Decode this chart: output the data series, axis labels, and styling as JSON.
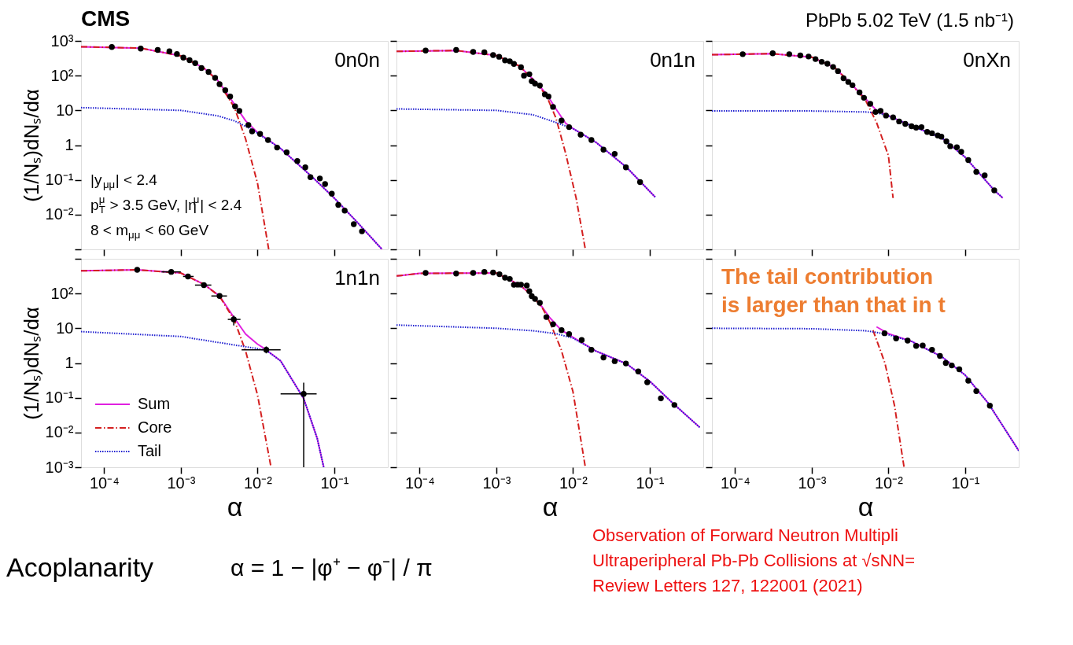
{
  "chart_data": [
    {
      "type": "other",
      "annotations": [
        "CMS",
        "PbPb 5.02 TeV (1.5 nb⁻¹)"
      ]
    },
    {
      "type": "line",
      "title": "0n0n",
      "ylabel": "(1/Nₛ)dNₛ/dα",
      "log": "xy",
      "grid": false,
      "tick_labels": "y",
      "xlim": [
        5e-05,
        0.5
      ],
      "ylim": [
        0.001,
        1000
      ],
      "xticks": [
        {
          "value": 0.0001,
          "label": null
        },
        {
          "value": 0.001,
          "label": null
        },
        {
          "value": 0.01,
          "label": null
        },
        {
          "value": 0.1,
          "label": null
        }
      ],
      "yticks": [
        {
          "value": 0.001,
          "label": null
        },
        {
          "value": 0.01,
          "label": "10⁻²"
        },
        {
          "value": 0.1,
          "label": "10⁻¹"
        },
        1,
        10,
        {
          "value": 100,
          "label": "10²"
        },
        {
          "value": 1000,
          "label": "10³"
        }
      ],
      "annotations": [
        "|y$_{μμ}$| < 2.4",
        "p$^{μ}$$_{T}$ > 3.5 GeV, |η$^{μ}$| < 2.4",
        "8 < m$_{μμ}$ < 60 GeV"
      ],
      "series": [
        {
          "type": "line",
          "color": "#e020e0",
          "line_style": "solid",
          "x": [
            5e-05,
            0.0003,
            0.001,
            0.002,
            0.003,
            0.005,
            0.007,
            0.01,
            0.02,
            0.05,
            0.1,
            0.2,
            0.42
          ],
          "values": [
            680,
            620,
            370,
            165,
            75,
            15,
            5,
            2.3,
            0.8,
            0.13,
            0.03,
            0.006,
            0.001
          ]
        },
        {
          "type": "line",
          "color": "#d42020",
          "line_style": "dashed",
          "x": [
            5e-05,
            0.0003,
            0.001,
            0.002,
            0.003,
            0.005,
            0.007,
            0.01,
            0.014
          ],
          "values": [
            680,
            620,
            370,
            165,
            73,
            12,
            1.5,
            0.08,
            0.001
          ]
        },
        {
          "type": "line",
          "color": "#2020d0",
          "line_style": "dotted",
          "x": [
            5e-05,
            0.001,
            0.003,
            0.005,
            0.008,
            0.01,
            0.02,
            0.05,
            0.1,
            0.2,
            0.42
          ],
          "values": [
            12,
            10,
            7,
            5,
            3,
            2.2,
            0.8,
            0.13,
            0.03,
            0.006,
            0.001
          ]
        },
        {
          "type": "scatter",
          "color": "#000000",
          "marker": "circle",
          "x": [
            0.000126,
            0.0003,
            0.0005,
            0.00071,
            0.00089,
            0.00108,
            0.0013,
            0.00154,
            0.00186,
            0.0023,
            0.0028,
            0.0032,
            0.0038,
            0.0044,
            0.0051,
            0.0058,
            0.0076,
            0.0085,
            0.0108,
            0.0137,
            0.018,
            0.024,
            0.033,
            0.042,
            0.049,
            0.065,
            0.076,
            0.093,
            0.113,
            0.137,
            0.18,
            0.23
          ],
          "values": [
            670,
            600,
            550,
            500,
            420,
            330,
            280,
            230,
            165,
            128,
            86,
            57,
            38,
            25,
            13,
            9.7,
            3.8,
            2.5,
            2.1,
            1.4,
            0.85,
            0.62,
            0.35,
            0.23,
            0.12,
            0.11,
            0.076,
            0.04,
            0.019,
            0.013,
            0.0053,
            0.0033
          ]
        }
      ]
    },
    {
      "type": "line",
      "title": "0n1n",
      "log": "xy",
      "grid": false,
      "tick_labels": false,
      "xlim": [
        5e-05,
        0.5
      ],
      "ylim": [
        0.001,
        1000
      ],
      "xticks": [
        {
          "value": 0.0001,
          "label": null
        },
        {
          "value": 0.001,
          "label": null
        },
        {
          "value": 0.01,
          "label": null
        },
        {
          "value": 0.1,
          "label": null
        }
      ],
      "yticks": [
        {
          "value": 0.001,
          "label": null
        },
        {
          "value": 0.01,
          "label": null
        },
        {
          "value": 0.1,
          "label": null
        },
        {
          "value": 1,
          "label": null
        },
        {
          "value": 10,
          "label": null
        },
        {
          "value": 100,
          "label": null
        },
        {
          "value": 1000,
          "label": null
        }
      ],
      "series": [
        {
          "type": "line",
          "color": "#e020e0",
          "line_style": "solid",
          "x": [
            5e-05,
            0.0003,
            0.001,
            0.002,
            0.003,
            0.0045,
            0.006,
            0.008,
            0.01,
            0.02,
            0.05,
            0.118
          ],
          "values": [
            500,
            530,
            380,
            190,
            80,
            30,
            11,
            4.3,
            3.0,
            1.2,
            0.23,
            0.032
          ]
        },
        {
          "type": "line",
          "color": "#d42020",
          "line_style": "dashed",
          "x": [
            5e-05,
            0.0003,
            0.001,
            0.002,
            0.003,
            0.0045,
            0.006,
            0.008,
            0.011,
            0.0145
          ],
          "values": [
            500,
            530,
            380,
            190,
            78,
            27,
            6,
            0.6,
            0.03,
            0.001
          ]
        },
        {
          "type": "line",
          "color": "#2020d0",
          "line_style": "dotted",
          "x": [
            5e-05,
            0.001,
            0.003,
            0.006,
            0.01,
            0.02,
            0.05,
            0.118
          ],
          "values": [
            11,
            10,
            7.5,
            4.5,
            3.0,
            1.2,
            0.23,
            0.032
          ]
        },
        {
          "type": "scatter",
          "color": "#000000",
          "marker": "circle",
          "x": [
            0.00012,
            0.0003,
            0.0005,
            0.0007,
            0.00091,
            0.00109,
            0.0013,
            0.0015,
            0.0017,
            0.0021,
            0.0023,
            0.0027,
            0.0029,
            0.0032,
            0.0037,
            0.0043,
            0.0048,
            0.0055,
            0.0071,
            0.0089,
            0.0126,
            0.0174,
            0.025,
            0.035,
            0.049,
            0.075
          ],
          "values": [
            530,
            550,
            480,
            470,
            390,
            350,
            275,
            260,
            217,
            174,
            100,
            110,
            69,
            59,
            52,
            29,
            25,
            12.6,
            5.1,
            3.3,
            2.0,
            1.4,
            0.74,
            0.56,
            0.23,
            0.086
          ]
        }
      ]
    },
    {
      "type": "line",
      "title": "0nXn",
      "log": "xy",
      "grid": false,
      "tick_labels": false,
      "xlim": [
        5e-05,
        0.5
      ],
      "ylim": [
        0.001,
        1000
      ],
      "xticks": [
        {
          "value": 0.0001,
          "label": null
        },
        {
          "value": 0.001,
          "label": null
        },
        {
          "value": 0.01,
          "label": null
        },
        {
          "value": 0.1,
          "label": null
        }
      ],
      "yticks": [
        {
          "value": 0.001,
          "label": null
        },
        {
          "value": 0.01,
          "label": null
        },
        {
          "value": 0.1,
          "label": null
        },
        {
          "value": 1,
          "label": null
        },
        {
          "value": 10,
          "label": null
        },
        {
          "value": 100,
          "label": null
        },
        {
          "value": 1000,
          "label": null
        }
      ],
      "series": [
        {
          "type": "line",
          "color": "#e020e0",
          "line_style": "solid",
          "x": [
            5e-05,
            0.0003,
            0.001,
            0.002,
            0.003,
            0.005,
            0.007,
            0.01,
            0.02,
            0.05,
            0.1,
            0.24,
            0.31
          ],
          "values": [
            400,
            430,
            340,
            170,
            70,
            22,
            10,
            7,
            3.6,
            1.6,
            0.45,
            0.05,
            0.03
          ]
        },
        {
          "type": "line",
          "color": "#d42020",
          "line_style": "dashed",
          "x": [
            5e-05,
            0.0003,
            0.001,
            0.002,
            0.003,
            0.005,
            0.007,
            0.01,
            0.0115
          ],
          "values": [
            400,
            430,
            340,
            170,
            70,
            20,
            4.5,
            0.5,
            0.03
          ]
        },
        {
          "type": "line",
          "color": "#2020d0",
          "line_style": "dotted",
          "x": [
            5e-05,
            0.001,
            0.005,
            0.007,
            0.01,
            0.02,
            0.05,
            0.1,
            0.24,
            0.31
          ],
          "values": [
            9.7,
            9.6,
            9.0,
            8.5,
            7,
            3.6,
            1.6,
            0.45,
            0.05,
            0.03
          ]
        },
        {
          "type": "scatter",
          "color": "#000000",
          "marker": "circle",
          "x": [
            0.000126,
            0.00031,
            0.00051,
            0.00071,
            0.00091,
            0.00112,
            0.00135,
            0.0016,
            0.0019,
            0.0022,
            0.0026,
            0.003,
            0.0034,
            0.0042,
            0.0048,
            0.0058,
            0.0068,
            0.0079,
            0.0093,
            0.0115,
            0.0138,
            0.0166,
            0.02,
            0.023,
            0.027,
            0.032,
            0.037,
            0.044,
            0.049,
            0.057,
            0.064,
            0.078,
            0.089,
            0.11,
            0.14,
            0.18,
            0.24
          ],
          "values": [
            415,
            440,
            415,
            380,
            355,
            300,
            250,
            220,
            178,
            135,
            84,
            66,
            53,
            33,
            23,
            15.4,
            9.0,
            9.7,
            7.1,
            6.3,
            4.8,
            4.1,
            3.5,
            3.2,
            3.3,
            2.4,
            2.2,
            1.9,
            1.75,
            1.28,
            0.93,
            0.87,
            0.64,
            0.37,
            0.17,
            0.135,
            0.05
          ]
        }
      ]
    },
    {
      "type": "line",
      "title": "1n1n",
      "xlabel": "α",
      "ylabel": "(1/Nₛ)dNₛ/dα",
      "log": "xy",
      "grid": false,
      "legend": "bottom left",
      "xlim": [
        5e-05,
        0.5
      ],
      "ylim": [
        0.001,
        1000
      ],
      "xticks": [
        {
          "value": 0.0001,
          "label": "10⁻⁴"
        },
        {
          "value": 0.001,
          "label": "10⁻³"
        },
        {
          "value": 0.01,
          "label": "10⁻²"
        },
        {
          "value": 0.1,
          "label": "10⁻¹"
        }
      ],
      "yticks": [
        {
          "value": 0.001,
          "label": "10⁻³"
        },
        {
          "value": 0.01,
          "label": "10⁻²"
        },
        {
          "value": 0.1,
          "label": "10⁻¹"
        },
        1,
        10,
        {
          "value": 100,
          "label": "10²"
        },
        {
          "value": 1000,
          "label": null
        }
      ],
      "series": [
        {
          "type": "line",
          "name": "Sum",
          "color": "#e020e0",
          "line_style": "solid",
          "x": [
            5e-05,
            0.00027,
            0.001,
            0.002,
            0.0032,
            0.005,
            0.007,
            0.01,
            0.013,
            0.02,
            0.04,
            0.06,
            0.073
          ],
          "values": [
            450,
            480,
            390,
            185,
            85,
            19.5,
            6.8,
            3.5,
            2.4,
            1.15,
            0.095,
            0.0068,
            0.001
          ]
        },
        {
          "type": "line",
          "name": "Core",
          "color": "#d42020",
          "line_style": "dashed",
          "x": [
            5e-05,
            0.00027,
            0.001,
            0.002,
            0.0032,
            0.005,
            0.007,
            0.01,
            0.015
          ],
          "values": [
            450,
            480,
            390,
            185,
            83,
            17,
            2.2,
            0.12,
            0.001
          ]
        },
        {
          "type": "line",
          "name": "Tail",
          "color": "#2020d0",
          "line_style": "dotted",
          "x": [
            5e-05,
            0.001,
            0.005,
            0.01,
            0.013,
            0.02,
            0.04,
            0.06,
            0.073
          ],
          "values": [
            8,
            5.8,
            3.3,
            2.6,
            2.3,
            1.15,
            0.095,
            0.0068,
            0.001
          ]
        },
        {
          "type": "scatter",
          "color": "#000000",
          "marker": "circle",
          "x": [
            0.00027,
            0.00075,
            0.00124,
            0.002,
            0.0032,
            0.0049,
            0.013,
            0.04
          ],
          "values": [
            480,
            420,
            310,
            175,
            85,
            18,
            2.4,
            0.13
          ],
          "xerrors": [
            null,
            [
              0.00056,
              0.001
            ],
            [
              0.00107,
              0.00147
            ],
            [
              0.00153,
              0.0025
            ],
            [
              0.0025,
              0.004
            ],
            [
              0.0041,
              0.006
            ],
            [
              0.0062,
              0.02
            ],
            [
              0.02,
              0.059
            ]
          ],
          "errors": [
            null,
            null,
            null,
            null,
            null,
            [
              12,
              23
            ],
            [
              1.9,
              3.0
            ],
            [
              0.001,
              0.27
            ]
          ]
        }
      ]
    },
    {
      "type": "line",
      "xlabel": "α",
      "log": "xy",
      "grid": false,
      "tick_labels": "x",
      "xlim": [
        5e-05,
        0.5
      ],
      "ylim": [
        0.001,
        1000
      ],
      "xticks": [
        {
          "value": 0.0001,
          "label": "10⁻⁴"
        },
        {
          "value": 0.001,
          "label": "10⁻³"
        },
        {
          "value": 0.01,
          "label": "10⁻²"
        },
        {
          "value": 0.1,
          "label": "10⁻¹"
        }
      ],
      "yticks": [
        {
          "value": 0.001,
          "label": null
        },
        {
          "value": 0.01,
          "label": null
        },
        {
          "value": 0.1,
          "label": null
        },
        {
          "value": 1,
          "label": null
        },
        {
          "value": 10,
          "label": null
        },
        {
          "value": 100,
          "label": null
        },
        {
          "value": 1000,
          "label": null
        }
      ],
      "series": [
        {
          "type": "line",
          "color": "#e020e0",
          "line_style": "solid",
          "x": [
            5e-05,
            0.0001,
            0.001,
            0.002,
            0.003,
            0.004,
            0.005,
            0.007,
            0.01,
            0.02,
            0.05,
            0.1,
            0.2,
            0.45
          ],
          "values": [
            320,
            380,
            390,
            180,
            85,
            40,
            20,
            9,
            5.5,
            2.2,
            0.95,
            0.3,
            0.07,
            0.014
          ]
        },
        {
          "type": "line",
          "color": "#d42020",
          "line_style": "dashed",
          "x": [
            5e-05,
            0.0001,
            0.001,
            0.002,
            0.003,
            0.004,
            0.005,
            0.007,
            0.01,
            0.0145
          ],
          "values": [
            320,
            380,
            390,
            180,
            84,
            38,
            15,
            2.5,
            0.15,
            0.001
          ]
        },
        {
          "type": "line",
          "color": "#2020d0",
          "line_style": "dotted",
          "x": [
            5e-05,
            0.001,
            0.003,
            0.006,
            0.01,
            0.02,
            0.05,
            0.1,
            0.2,
            0.45
          ],
          "values": [
            12.4,
            10,
            8.5,
            7,
            5.2,
            2.2,
            0.95,
            0.3,
            0.07,
            0.014
          ]
        },
        {
          "type": "scatter",
          "color": "#000000",
          "marker": "circle",
          "x": [
            0.00012,
            0.0003,
            0.0005,
            0.0007,
            0.00091,
            0.0011,
            0.0013,
            0.0015,
            0.0017,
            0.0019,
            0.0021,
            0.0025,
            0.0027,
            0.0029,
            0.0032,
            0.0037,
            0.0045,
            0.0055,
            0.0071,
            0.0089,
            0.013,
            0.0174,
            0.025,
            0.035,
            0.049,
            0.071,
            0.093,
            0.14,
            0.21
          ],
          "values": [
            390,
            375,
            390,
            420,
            400,
            360,
            285,
            263,
            178,
            180,
            180,
            170,
            117,
            84,
            70,
            54,
            21,
            13,
            8.8,
            6.8,
            4.6,
            2.4,
            1.44,
            1.13,
            0.97,
            0.57,
            0.28,
            0.096,
            0.062
          ]
        }
      ]
    },
    {
      "type": "line",
      "xlabel": "α",
      "log": "xy",
      "grid": false,
      "tick_labels": "x",
      "xlim": [
        5e-05,
        0.5
      ],
      "ylim": [
        0.001,
        1000
      ],
      "xticks": [
        {
          "value": 0.0001,
          "label": "10⁻⁴"
        },
        {
          "value": 0.001,
          "label": "10⁻³"
        },
        {
          "value": 0.01,
          "label": "10⁻²"
        },
        {
          "value": 0.1,
          "label": "10⁻¹"
        }
      ],
      "yticks": [
        {
          "value": 0.001,
          "label": null
        },
        {
          "value": 0.01,
          "label": null
        },
        {
          "value": 0.1,
          "label": null
        },
        {
          "value": 1,
          "label": null
        },
        {
          "value": 10,
          "label": null
        },
        {
          "value": 100,
          "label": null
        },
        {
          "value": 1000,
          "label": null
        }
      ],
      "series": [
        {
          "type": "line",
          "color": "#e020e0",
          "line_style": "solid",
          "x": [
            0.007,
            0.01,
            0.02,
            0.05,
            0.1,
            0.2,
            0.5
          ],
          "values": [
            11,
            7.0,
            4.2,
            1.5,
            0.45,
            0.07,
            0.003
          ]
        },
        {
          "type": "line",
          "color": "#d42020",
          "line_style": "dashed",
          "x": [
            0.0063,
            0.009,
            0.012,
            0.016
          ],
          "values": [
            8.8,
            1,
            0.06,
            0.001
          ]
        },
        {
          "type": "line",
          "color": "#2020d0",
          "line_style": "dotted",
          "x": [
            5e-05,
            0.001,
            0.005,
            0.007,
            0.01,
            0.02,
            0.05,
            0.1,
            0.2,
            0.5
          ],
          "values": [
            10,
            9.7,
            8.5,
            7.6,
            6.5,
            4.2,
            1.5,
            0.45,
            0.07,
            0.003
          ]
        },
        {
          "type": "scatter",
          "color": "#000000",
          "marker": "circle",
          "x": [
            0.0089,
            0.0126,
            0.0178,
            0.023,
            0.028,
            0.037,
            0.047,
            0.056,
            0.067,
            0.084,
            0.11,
            0.14,
            0.21
          ],
          "values": [
            7.2,
            5.1,
            4.4,
            3.1,
            3.2,
            2.4,
            1.6,
            1.0,
            0.85,
            0.66,
            0.31,
            0.155,
            0.059
          ]
        }
      ]
    },
    {
      "type": "other",
      "annotations": [
        "Acoplanarity",
        "α = 1 − |φ⁺ − φ⁻| / π",
        "Observation of Forward Neutron Multipli",
        "Ultraperipheral Pb-Pb Collisions at √sNN=",
        "Review Letters 127, 122001 (2021)",
        "The tail contribution",
        "is larger than that in t"
      ]
    }
  ]
}
